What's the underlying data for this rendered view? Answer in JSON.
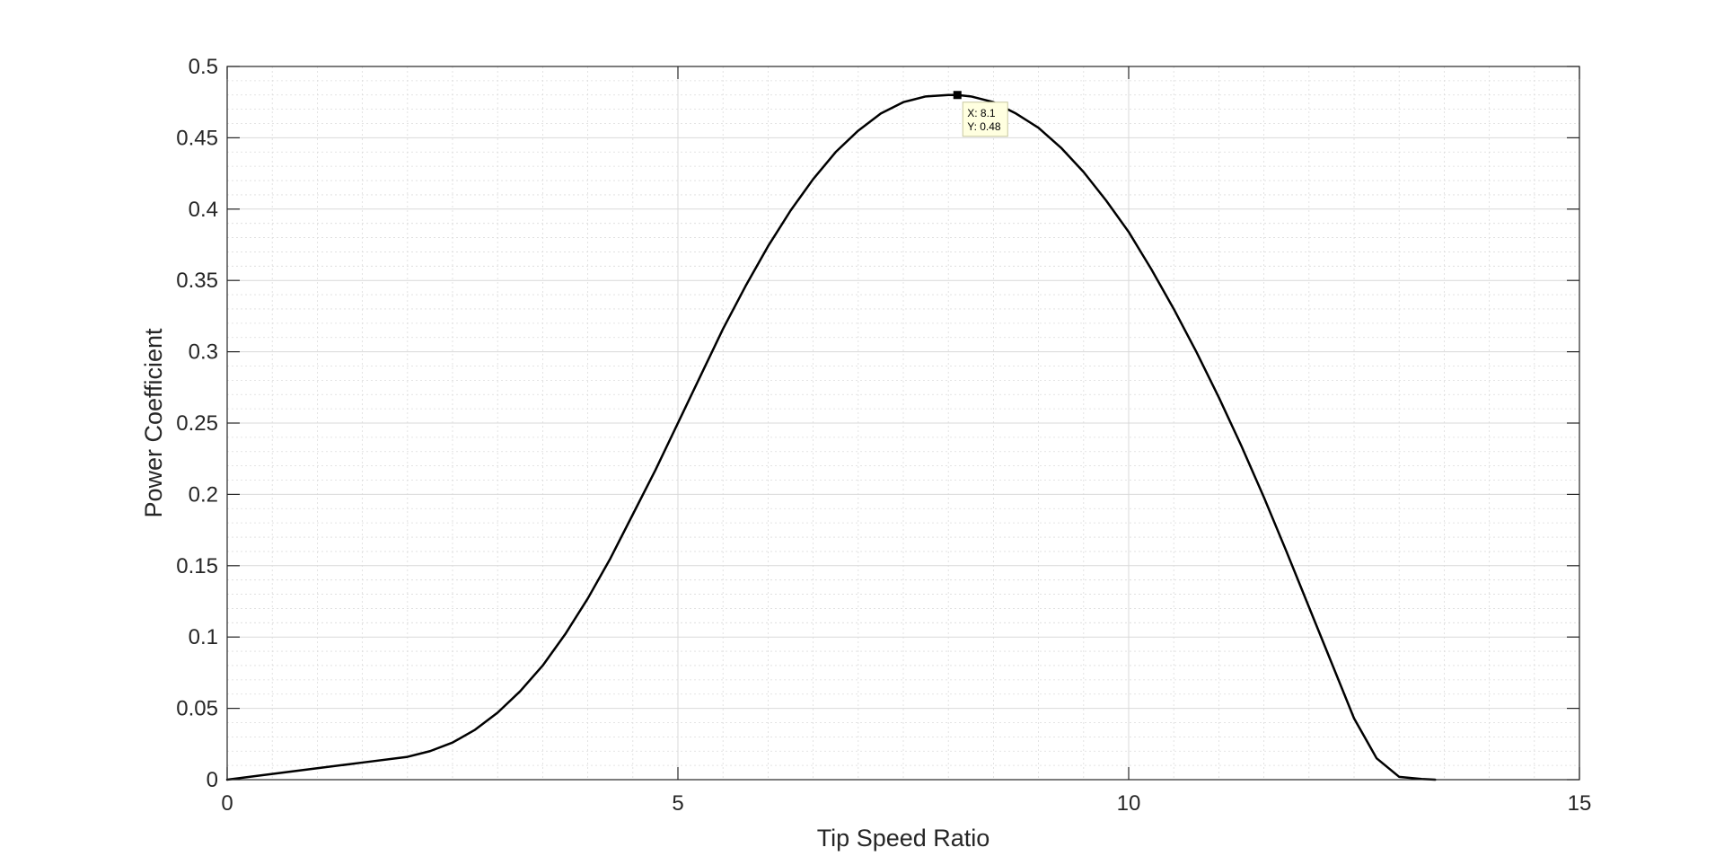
{
  "chart_data": {
    "type": "line",
    "title": "",
    "xlabel": "Tip Speed Ratio",
    "ylabel": "Power Coefficient",
    "xlim": [
      0,
      15
    ],
    "ylim": [
      0,
      0.5
    ],
    "x_ticks": [
      0,
      5,
      10,
      15
    ],
    "x_tick_labels": [
      "0",
      "5",
      "10",
      "15"
    ],
    "y_ticks": [
      0,
      0.05,
      0.1,
      0.15,
      0.2,
      0.25,
      0.3,
      0.35,
      0.4,
      0.45,
      0.5
    ],
    "y_tick_labels": [
      "0",
      "0.05",
      "0.1",
      "0.15",
      "0.2",
      "0.25",
      "0.3",
      "0.35",
      "0.4",
      "0.45",
      "0.5"
    ],
    "grid": true,
    "minor_grid": true,
    "box": true,
    "series": [
      {
        "color": "#000000",
        "x": [
          0,
          0.5,
          1.0,
          1.5,
          2.0,
          2.25,
          2.5,
          2.75,
          3.0,
          3.25,
          3.5,
          3.75,
          4.0,
          4.25,
          4.5,
          4.75,
          5.0,
          5.25,
          5.5,
          5.75,
          6.0,
          6.25,
          6.5,
          6.75,
          7.0,
          7.25,
          7.5,
          7.75,
          8.0,
          8.1,
          8.25,
          8.5,
          8.75,
          9.0,
          9.25,
          9.5,
          9.75,
          10.0,
          10.25,
          10.5,
          10.75,
          11.0,
          11.25,
          11.5,
          11.75,
          12.0,
          12.25,
          12.5,
          12.75,
          13.0,
          13.25,
          13.4
        ],
        "y": [
          0,
          0.004,
          0.008,
          0.012,
          0.016,
          0.02,
          0.026,
          0.035,
          0.047,
          0.062,
          0.08,
          0.102,
          0.127,
          0.155,
          0.186,
          0.217,
          0.25,
          0.283,
          0.316,
          0.346,
          0.374,
          0.399,
          0.421,
          0.44,
          0.455,
          0.467,
          0.475,
          0.479,
          0.48,
          0.48,
          0.479,
          0.475,
          0.467,
          0.457,
          0.443,
          0.426,
          0.406,
          0.384,
          0.358,
          0.33,
          0.3,
          0.268,
          0.234,
          0.198,
          0.16,
          0.121,
          0.082,
          0.043,
          0.015,
          0.002,
          0.0005,
          0
        ]
      }
    ],
    "annotations": [
      {
        "type": "datatip",
        "x": 8.1,
        "y": 0.48,
        "x_text": "X: 8.1",
        "y_text": "Y: 0.48"
      }
    ]
  }
}
